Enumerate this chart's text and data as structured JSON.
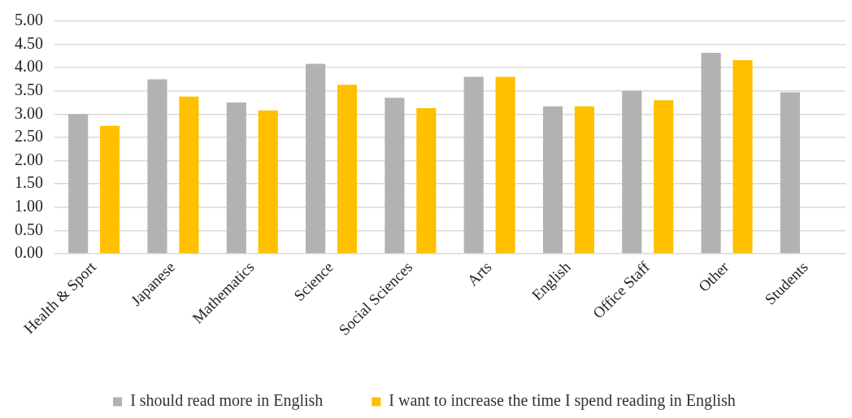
{
  "chart_data": {
    "type": "bar",
    "categories": [
      "Health & Sport",
      "Japanese",
      "Mathematics",
      "Science",
      "Social Sciences",
      "Arts",
      "English",
      "Office Staff",
      "Other",
      "Students"
    ],
    "series": [
      {
        "name": "I should read more in English",
        "color": "#b2b2b2",
        "values": [
          3.0,
          3.75,
          3.25,
          4.08,
          3.35,
          3.8,
          3.17,
          3.5,
          4.32,
          3.47
        ]
      },
      {
        "name": "I want to increase the time I spend reading in English",
        "color": "#ffc000",
        "values": [
          2.75,
          3.38,
          3.08,
          3.63,
          3.13,
          3.8,
          3.17,
          3.3,
          4.16,
          null
        ]
      }
    ],
    "ylim": [
      0,
      5
    ],
    "yticks": [
      {
        "value": 0,
        "label": "0.00"
      },
      {
        "value": 0.5,
        "label": "0.50"
      },
      {
        "value": 1,
        "label": "1.00"
      },
      {
        "value": 1.5,
        "label": "1.50"
      },
      {
        "value": 2,
        "label": "2.00"
      },
      {
        "value": 2.5,
        "label": "2.50"
      },
      {
        "value": 3,
        "label": "3.00"
      },
      {
        "value": 3.5,
        "label": "3.50"
      },
      {
        "value": 4,
        "label": "4.00"
      },
      {
        "value": 4.5,
        "label": "4.50"
      },
      {
        "value": 5,
        "label": "5.00"
      }
    ],
    "grid": "y",
    "legend": "bottom"
  }
}
